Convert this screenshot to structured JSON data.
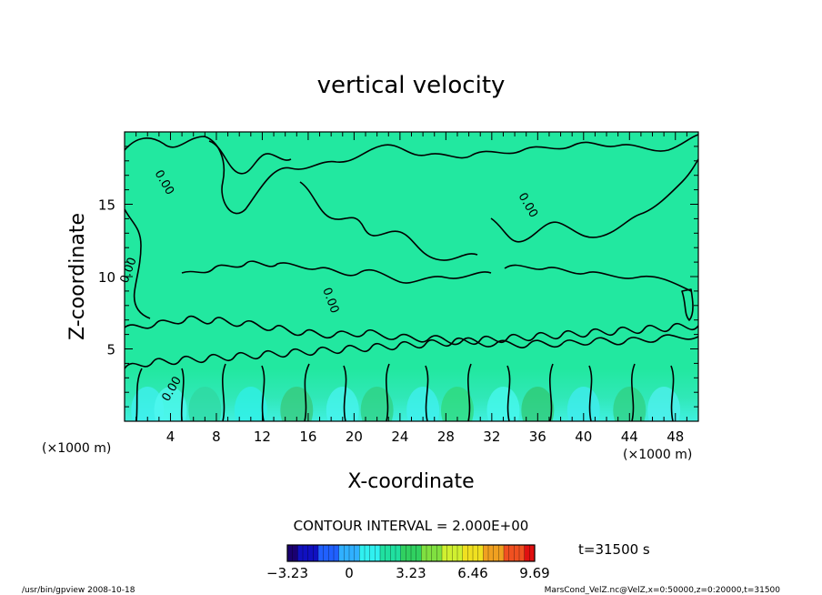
{
  "chart_data": {
    "type": "heatmap",
    "title": "vertical velocity",
    "xlabel": "X-coordinate",
    "ylabel": "Z-coordinate",
    "x_unit": "(×1000 m)",
    "y_unit": "(×1000 m)",
    "xlim": [
      0,
      50
    ],
    "ylim": [
      0,
      20
    ],
    "x_ticks": [
      4,
      8,
      12,
      16,
      20,
      24,
      28,
      32,
      36,
      40,
      44,
      48
    ],
    "y_ticks": [
      5,
      10,
      15
    ],
    "contour_label": "0.00",
    "contour_interval_label": "CONTOUR INTERVAL = 2.000E+00",
    "time_label": "t=31500 s",
    "colorbar": {
      "min": -3.23,
      "max": 9.69,
      "tick_values": [
        -3.23,
        0,
        3.23,
        6.46,
        9.69
      ],
      "tick_labels": [
        "−3.23",
        "0",
        "3.23",
        "6.46",
        "9.69"
      ],
      "colors": [
        "#1a0070",
        "#1010c0",
        "#2060ff",
        "#30b0ff",
        "#30f0f0",
        "#20e0a0",
        "#30d060",
        "#80e040",
        "#d0f030",
        "#f0e020",
        "#f0a020",
        "#f05020",
        "#e01010"
      ]
    },
    "background_color": "#22e8a0"
  },
  "footer": {
    "left": "/usr/bin/gpview   2008-10-18",
    "right": "MarsCond_VelZ.nc@VelZ,x=0:50000,z=0:20000,t=31500"
  }
}
